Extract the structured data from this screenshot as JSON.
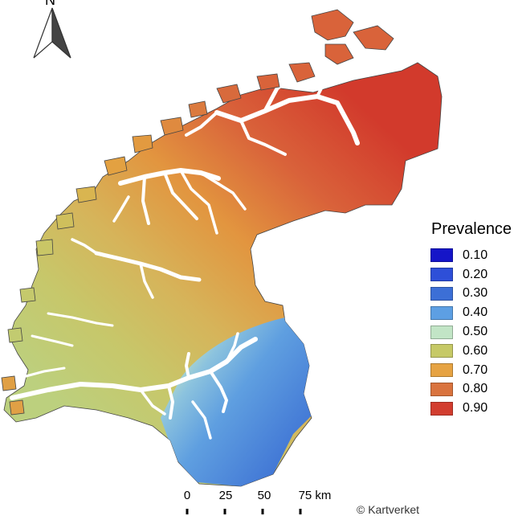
{
  "legend": {
    "title": "Prevalence",
    "items": [
      {
        "label": "0.10",
        "color": "#1515c8"
      },
      {
        "label": "0.20",
        "color": "#2e4fd8"
      },
      {
        "label": "0.30",
        "color": "#3c6fd6"
      },
      {
        "label": "0.40",
        "color": "#5d9fe3"
      },
      {
        "label": "0.50",
        "color": "#c2e5c6"
      },
      {
        "label": "0.60",
        "color": "#c6c966"
      },
      {
        "label": "0.70",
        "color": "#e6a343"
      },
      {
        "label": "0.80",
        "color": "#d9733e"
      },
      {
        "label": "0.90",
        "color": "#d23d2f"
      }
    ]
  },
  "north_arrow": {
    "letter": "N",
    "icon": "north-arrow-icon"
  },
  "scale_bar": {
    "ticks": [
      "0",
      "25",
      "50",
      "75 km"
    ]
  },
  "credit": "© Kartverket"
}
